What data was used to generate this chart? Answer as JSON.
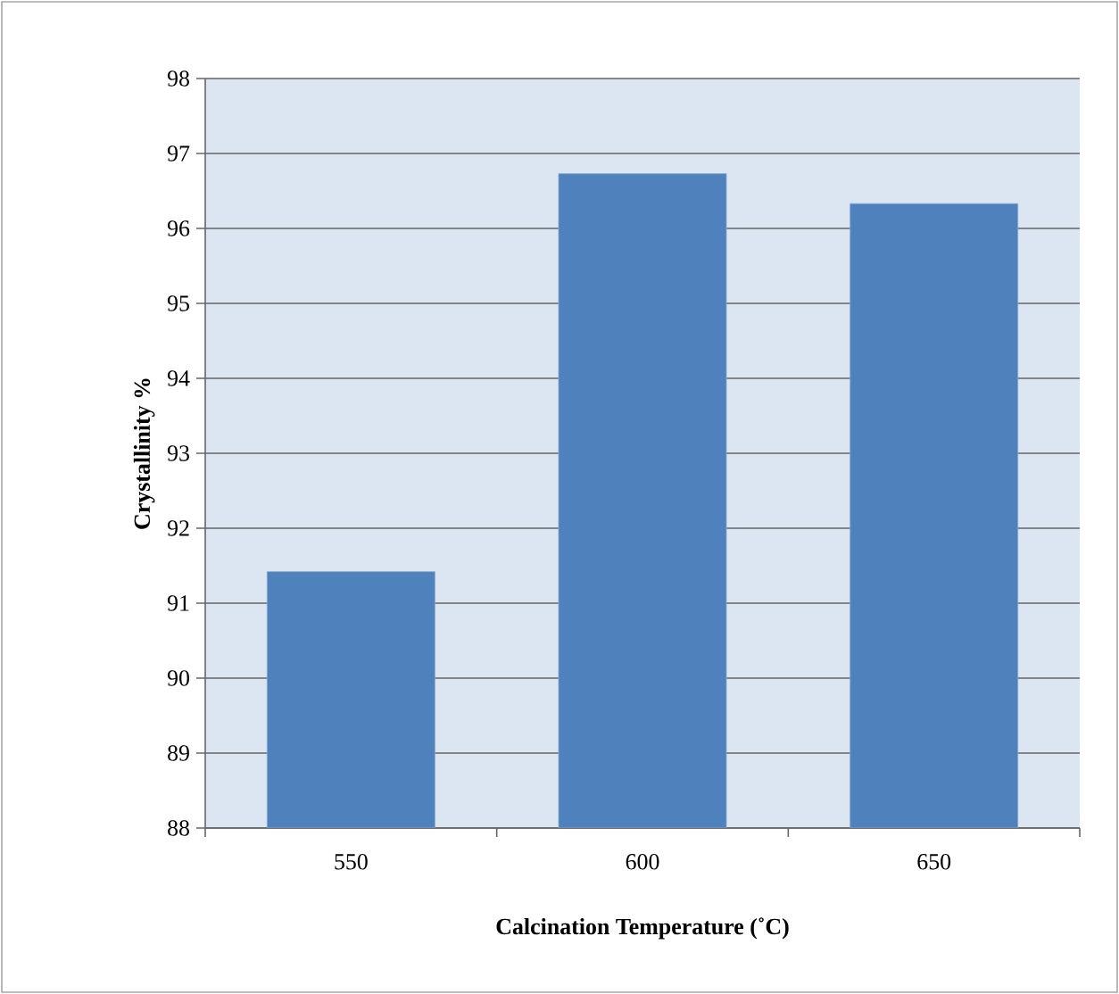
{
  "chart_data": {
    "type": "bar",
    "xlabel": "Calcination Temperature (˚C)",
    "ylabel": "Crystallinity %",
    "categories": [
      "550",
      "600",
      "650"
    ],
    "values": [
      91.42,
      96.73,
      96.33
    ],
    "color": "#4f81bd",
    "ylim": [
      88,
      98
    ],
    "yticks": [
      88,
      89,
      90,
      91,
      92,
      93,
      94,
      95,
      96,
      97,
      98
    ],
    "grid": "y"
  }
}
